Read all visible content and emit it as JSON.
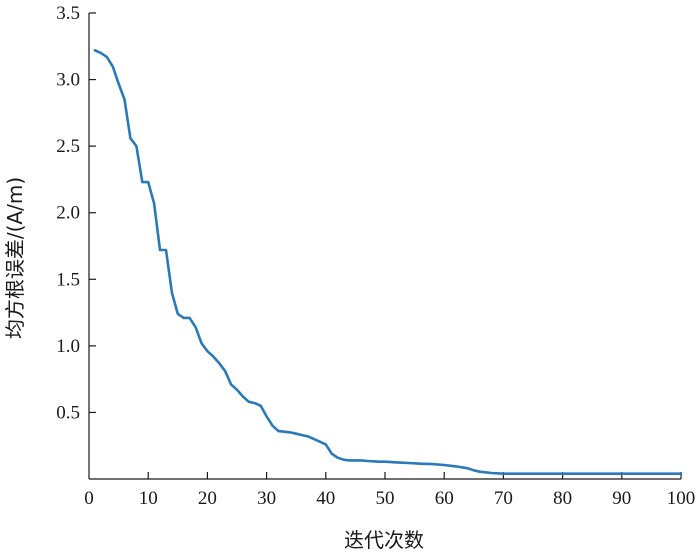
{
  "chart_data": {
    "type": "line",
    "title": "",
    "xlabel": "迭代次数",
    "ylabel": "均方根误差/(A/m)",
    "xlim": [
      0,
      100
    ],
    "ylim": [
      0,
      3.5
    ],
    "x_ticks": [
      "0",
      "10",
      "20",
      "30",
      "40",
      "50",
      "60",
      "70",
      "80",
      "90",
      "100"
    ],
    "y_ticks": [
      "0.5",
      "1.0",
      "1.5",
      "2.0",
      "2.5",
      "3.0",
      "3.5"
    ],
    "grid": false,
    "legend": "none",
    "line_color": "#2a7ab8",
    "series": [
      {
        "x": [
          1,
          2,
          3,
          4,
          5,
          6,
          7,
          8,
          9,
          10,
          11,
          12,
          13,
          14,
          15,
          16,
          17,
          18,
          19,
          20,
          21,
          22,
          23,
          24,
          25,
          26,
          27,
          28,
          29,
          30,
          31,
          32,
          33,
          34,
          35,
          36,
          37,
          38,
          39,
          40,
          41,
          42,
          43,
          44,
          45,
          46,
          47,
          48,
          49,
          50,
          52,
          54,
          56,
          58,
          60,
          62,
          64,
          65,
          66,
          68,
          70,
          75,
          80,
          85,
          90,
          95,
          100
        ],
        "y": [
          3.22,
          3.2,
          3.17,
          3.1,
          2.97,
          2.85,
          2.56,
          2.5,
          2.23,
          2.23,
          2.07,
          1.72,
          1.72,
          1.4,
          1.24,
          1.21,
          1.21,
          1.14,
          1.02,
          0.96,
          0.92,
          0.87,
          0.81,
          0.71,
          0.67,
          0.62,
          0.58,
          0.57,
          0.55,
          0.47,
          0.4,
          0.36,
          0.355,
          0.35,
          0.34,
          0.33,
          0.32,
          0.3,
          0.28,
          0.26,
          0.19,
          0.16,
          0.145,
          0.14,
          0.14,
          0.14,
          0.135,
          0.133,
          0.13,
          0.13,
          0.125,
          0.12,
          0.115,
          0.112,
          0.105,
          0.095,
          0.08,
          0.065,
          0.055,
          0.045,
          0.04,
          0.04,
          0.04,
          0.04,
          0.04,
          0.04,
          0.04
        ]
      }
    ]
  }
}
